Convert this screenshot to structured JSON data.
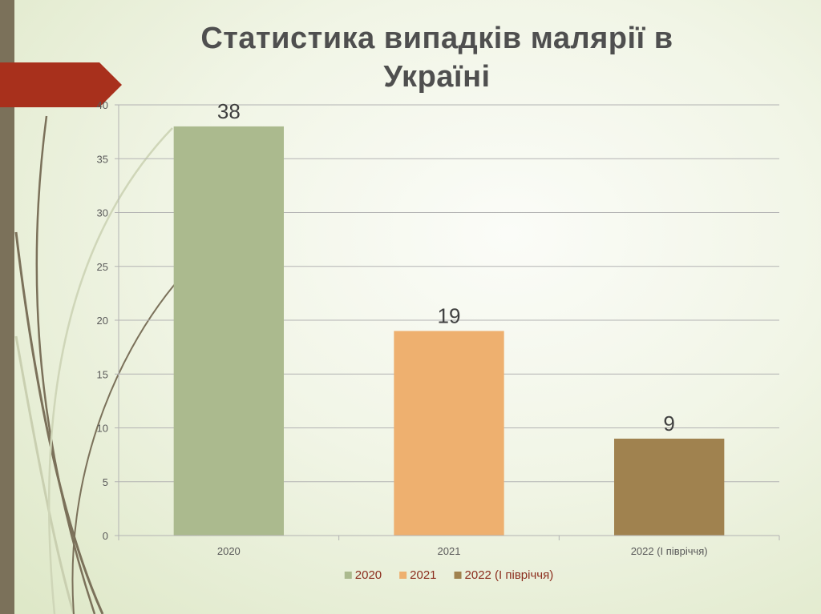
{
  "slide": {
    "title": "Статистика випадків малярії в Україні"
  },
  "theme": {
    "sidebar_color": "#7b715a",
    "tab_color": "#a8301c",
    "axis_color": "#b3b3b3"
  },
  "chart_data": {
    "type": "bar",
    "title": "Статистика випадків малярії в Україні",
    "categories": [
      "2020",
      "2021",
      "2022 (I півріччя)"
    ],
    "values": [
      38,
      19,
      9
    ],
    "data_labels": [
      "38",
      "19",
      "9"
    ],
    "colors": [
      "#abba8e",
      "#eeb06f",
      "#a0824f"
    ],
    "ylim": [
      0,
      40
    ],
    "yticks": [
      0,
      5,
      10,
      15,
      20,
      25,
      30,
      35,
      40
    ],
    "ytick_labels": [
      "0",
      "5",
      "10",
      "15",
      "20",
      "25",
      "30",
      "35",
      "40"
    ],
    "grid": true,
    "legend": {
      "position": "bottom",
      "entries": [
        "2020",
        "2021",
        "2022 (I півріччя)"
      ]
    }
  }
}
